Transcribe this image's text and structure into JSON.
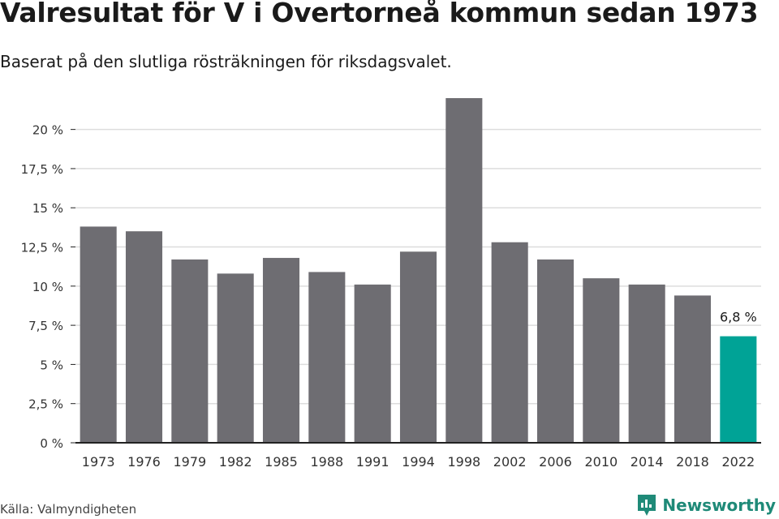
{
  "title": "Valresultat för V i Overtorneå kommun sedan 1973",
  "subtitle": "Baserat på den slutliga rösträkningen för riksdagsvalet.",
  "source": "Källa: Valmyndigheten",
  "brand": {
    "name": "Newsworthy",
    "icon": "newsworthy-logo-icon"
  },
  "colors": {
    "bar": "#6e6d72",
    "highlight": "#00a396",
    "grid": "#dddddd",
    "axis": "#222222"
  },
  "chart_data": {
    "type": "bar",
    "categories": [
      "1973",
      "1976",
      "1979",
      "1982",
      "1985",
      "1988",
      "1991",
      "1994",
      "1998",
      "2002",
      "2006",
      "2010",
      "2014",
      "2018",
      "2022"
    ],
    "values": [
      13.8,
      13.5,
      11.7,
      10.8,
      11.8,
      10.9,
      10.1,
      12.2,
      22.0,
      12.8,
      11.7,
      10.5,
      10.1,
      9.4,
      6.8
    ],
    "highlight_index": 14,
    "data_labels": [
      {
        "index": 14,
        "text": "6,8 %"
      }
    ],
    "yticks": [
      0,
      2.5,
      5,
      7.5,
      10,
      12.5,
      15,
      17.5,
      20
    ],
    "ytick_labels": [
      "0 %",
      "2,5 %",
      "5 %",
      "7,5 %",
      "10 %",
      "12,5 %",
      "15 %",
      "17,5 %",
      "20 %"
    ],
    "ylim": [
      0,
      22
    ],
    "xlabel": "",
    "ylabel": "",
    "grid": true
  }
}
